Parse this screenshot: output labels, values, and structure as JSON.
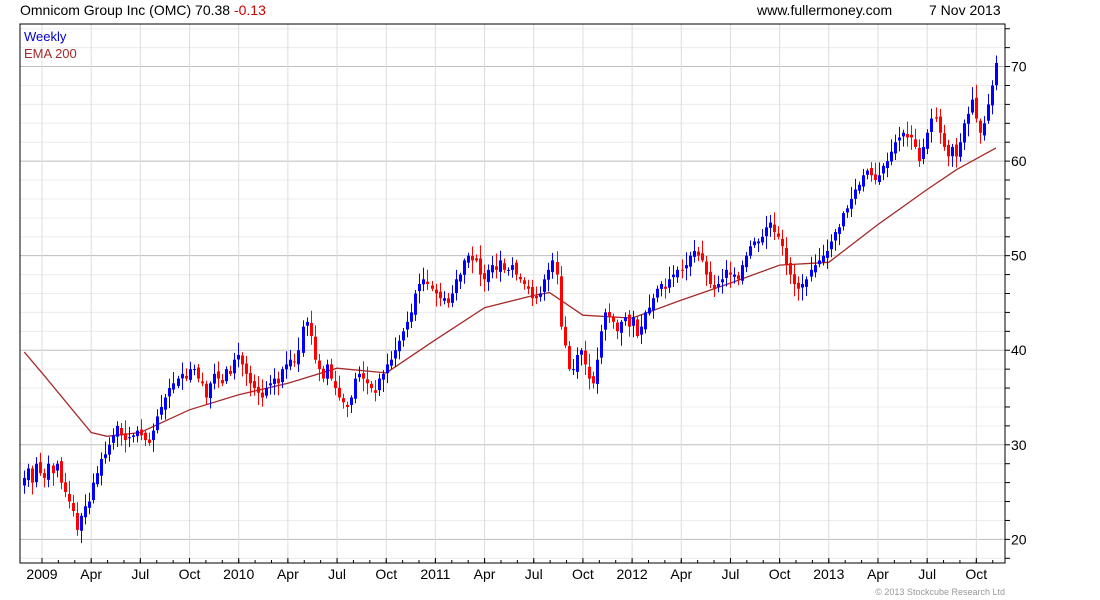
{
  "header": {
    "title": "Omnicom Group Inc (OMC)",
    "last_price": "70.38",
    "change": "-0.13",
    "site": "www.fullermoney.com",
    "date": "7 Nov 2013"
  },
  "legend": {
    "period": "Weekly",
    "indicator": "EMA 200"
  },
  "footer": {
    "copyright": "© 2013 Stockcube Research Ltd"
  },
  "colors": {
    "up": "#0000ff",
    "down": "#ff0000",
    "ema": "#a52a2a",
    "change": "#cc0000",
    "legend_period": "#0000cc"
  },
  "chart_data": {
    "type": "candlestick",
    "title": "Omnicom Group Inc (OMC) Weekly",
    "xlabel": "",
    "ylabel": "",
    "ylim": [
      17.5,
      74.5
    ],
    "y_ticks": [
      20,
      30,
      40,
      50,
      60,
      70
    ],
    "y_tick_labels": [
      "20",
      "30",
      "40",
      "50",
      "60",
      "70"
    ],
    "x_ticks": [
      2009.0,
      2009.25,
      2009.5,
      2009.75,
      2010.0,
      2010.25,
      2010.5,
      2010.75,
      2011.0,
      2011.25,
      2011.5,
      2011.75,
      2012.0,
      2012.25,
      2012.5,
      2012.75,
      2013.0,
      2013.25,
      2013.5,
      2013.75
    ],
    "x_tick_labels": [
      "2009",
      "Apr",
      "Jul",
      "Oct",
      "2010",
      "Apr",
      "Jul",
      "Oct",
      "2011",
      "Apr",
      "Jul",
      "Oct",
      "2012",
      "Apr",
      "Jul",
      "Oct",
      "2013",
      "Apr",
      "Jul",
      "Oct"
    ],
    "first_week": 2008.91,
    "last_week": 2013.85,
    "weekly_close": [
      26.5,
      27.5,
      26,
      28,
      27,
      26.5,
      28,
      27,
      28,
      26,
      25,
      24,
      23,
      21,
      22.5,
      23.5,
      24,
      26,
      27,
      28.5,
      29,
      30,
      31,
      32,
      31,
      30.5,
      30.8,
      31,
      31.5,
      31,
      30.5,
      30.2,
      31.5,
      33,
      34,
      35,
      36,
      36.5,
      37,
      37.5,
      37,
      38,
      38,
      37,
      36.5,
      35,
      36.5,
      37.5,
      37,
      36.5,
      38,
      37.5,
      39,
      39.5,
      38.5,
      37.5,
      36.5,
      36,
      35.5,
      35,
      36,
      36.5,
      37,
      36.5,
      38,
      38.5,
      39,
      38.8,
      40,
      42.5,
      43,
      41.5,
      39,
      38,
      37,
      38.5,
      37,
      36,
      35,
      34.5,
      34,
      35,
      37,
      37.5,
      37,
      36.5,
      36,
      35.5,
      37,
      37.5,
      38.5,
      39,
      40,
      41,
      42,
      43,
      44,
      46,
      47,
      47.5,
      47,
      46.5,
      46,
      45.5,
      45.5,
      45,
      46,
      47.5,
      48,
      49.5,
      50,
      49.5,
      49.5,
      48,
      47.5,
      48.5,
      49,
      48.5,
      49.5,
      48.5,
      48.5,
      49,
      48,
      47.5,
      47,
      46.5,
      45.5,
      45.5,
      46,
      47.5,
      48.5,
      49.5,
      48,
      42.5,
      40.5,
      38,
      38,
      39.5,
      40,
      38.5,
      37,
      36.5,
      39,
      42,
      44,
      43.5,
      43,
      42,
      43,
      43.5,
      42.5,
      43.5,
      41.5,
      42.5,
      44,
      44.5,
      45.5,
      46.5,
      47,
      46.5,
      47.5,
      48,
      48.5,
      48.5,
      49,
      50,
      50.5,
      50,
      49.5,
      48,
      47,
      46.5,
      47,
      47.5,
      48.5,
      48,
      48,
      47.5,
      49,
      50,
      51,
      51.5,
      51.5,
      52,
      53,
      53.5,
      52.5,
      52,
      51,
      49,
      48,
      47,
      46.5,
      47,
      47.5,
      48.5,
      49,
      49.5,
      50,
      50.5,
      51.5,
      52.5,
      53,
      54.5,
      55,
      56,
      57,
      57.5,
      58.5,
      59,
      58.5,
      58,
      58.5,
      59.5,
      60,
      61,
      62,
      62.5,
      63,
      62.5,
      62.5,
      61.5,
      60,
      61.5,
      63,
      64.5,
      64.5,
      63,
      61.5,
      60.5,
      61.5,
      60.5,
      62,
      64,
      65,
      66.5,
      64.5,
      63,
      64,
      66,
      68,
      70.38
    ],
    "ema_200": [
      {
        "t": 2008.91,
        "v": 39.8
      },
      {
        "t": 2009.0,
        "v": 37.6
      },
      {
        "t": 2009.25,
        "v": 31.3
      },
      {
        "t": 2009.33,
        "v": 30.9
      },
      {
        "t": 2009.5,
        "v": 31.3
      },
      {
        "t": 2009.75,
        "v": 33.7
      },
      {
        "t": 2010.0,
        "v": 35.3
      },
      {
        "t": 2010.25,
        "v": 36.5
      },
      {
        "t": 2010.5,
        "v": 38.1
      },
      {
        "t": 2010.75,
        "v": 37.6
      },
      {
        "t": 2011.0,
        "v": 41.1
      },
      {
        "t": 2011.25,
        "v": 44.5
      },
      {
        "t": 2011.5,
        "v": 45.8
      },
      {
        "t": 2011.58,
        "v": 46.1
      },
      {
        "t": 2011.75,
        "v": 43.7
      },
      {
        "t": 2012.0,
        "v": 43.4
      },
      {
        "t": 2012.25,
        "v": 45.3
      },
      {
        "t": 2012.5,
        "v": 47.1
      },
      {
        "t": 2012.75,
        "v": 49.0
      },
      {
        "t": 2013.0,
        "v": 49.3
      },
      {
        "t": 2013.25,
        "v": 53.3
      },
      {
        "t": 2013.5,
        "v": 57.0
      },
      {
        "t": 2013.65,
        "v": 59.1
      },
      {
        "t": 2013.85,
        "v": 61.4
      }
    ]
  }
}
